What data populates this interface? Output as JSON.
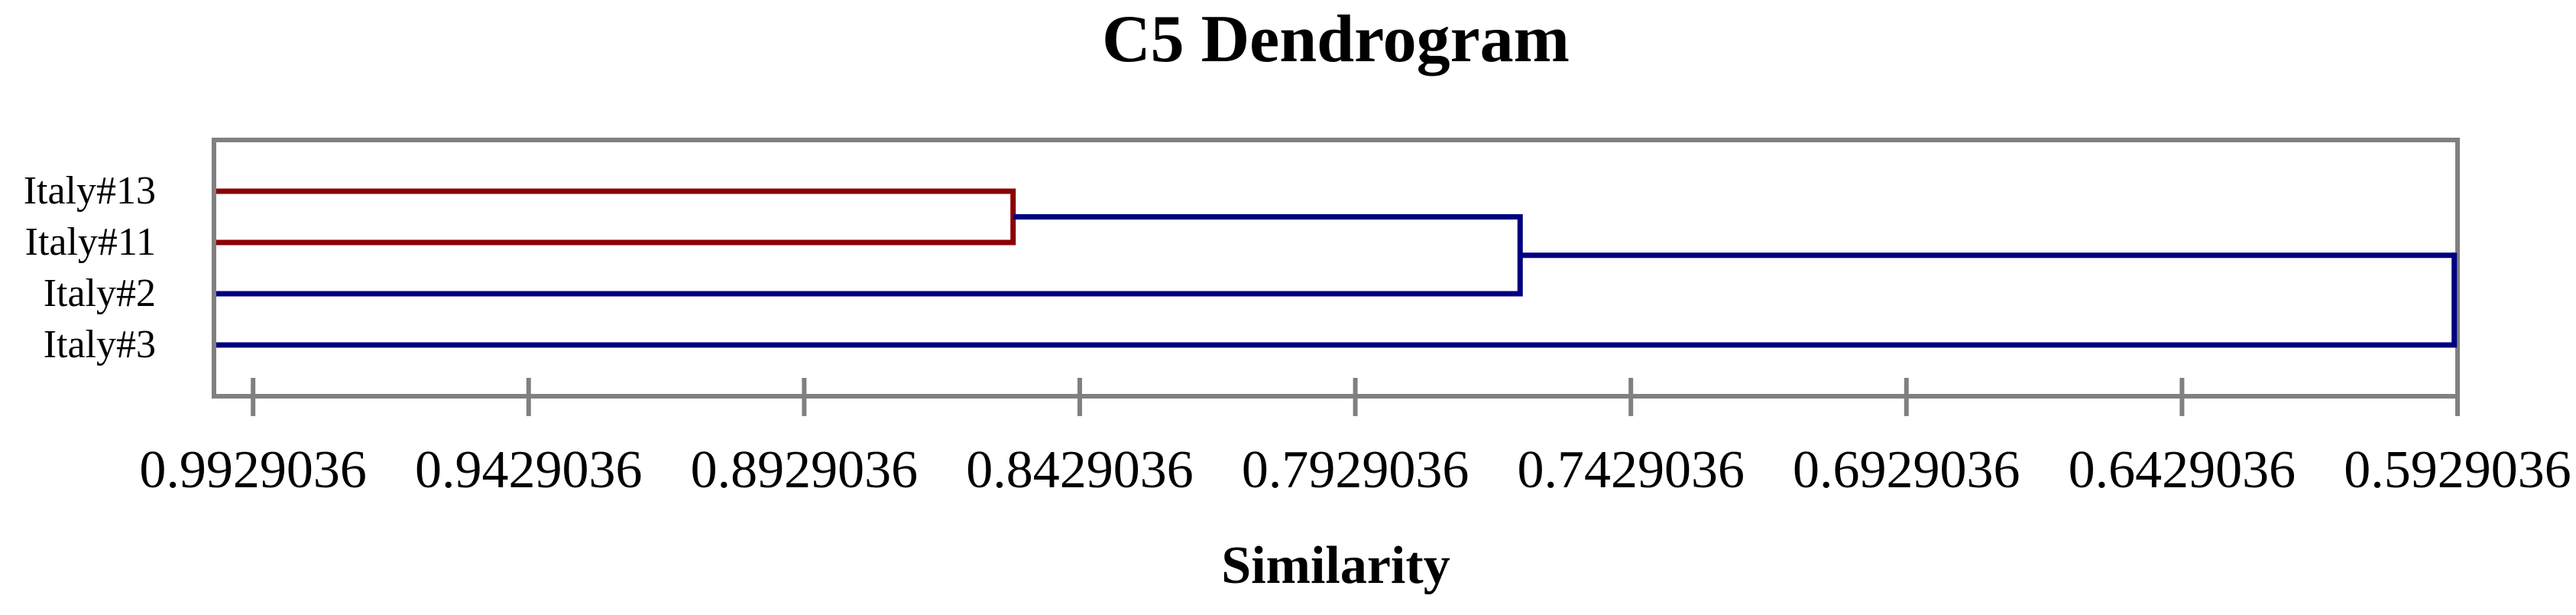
{
  "chart_data": {
    "type": "dendrogram",
    "orientation": "horizontal",
    "title": "C5 Dendrogram",
    "xlabel": "Similarity",
    "axis": {
      "left_edge_value": 1.0,
      "right_edge_value": 0.5929036,
      "tick_step": 0.05,
      "tick_values": [
        "0.9929036",
        "0.9429036",
        "0.8929036",
        "0.8429036",
        "0.7929036",
        "0.7429036",
        "0.6929036",
        "0.6429036",
        "0.5929036"
      ],
      "grid": false
    },
    "leaves": [
      {
        "id": "L0",
        "label": "Italy#13",
        "color": "#8B0000"
      },
      {
        "id": "L1",
        "label": "Italy#11",
        "color": "#8B0000"
      },
      {
        "id": "L2",
        "label": "Italy#2",
        "color": "#000080"
      },
      {
        "id": "L3",
        "label": "Italy#3",
        "color": "#000080"
      }
    ],
    "merges": [
      {
        "id": "M0",
        "a": "L0",
        "b": "L1",
        "similarity": 0.855,
        "join_color": "#8B0000",
        "out_color": "#000080"
      },
      {
        "id": "M1",
        "a": "M0",
        "b": "L2",
        "similarity": 0.763,
        "join_color": "#000080",
        "out_color": "#000080"
      },
      {
        "id": "M2",
        "a": "M1",
        "b": "L3",
        "similarity": 0.5935,
        "join_color": "#000080",
        "out_color": "#000080"
      }
    ],
    "colors": {
      "cluster_red": "#8B0000",
      "cluster_blue": "#000080",
      "frame_gray": "#808080",
      "text_black": "#000000"
    }
  }
}
